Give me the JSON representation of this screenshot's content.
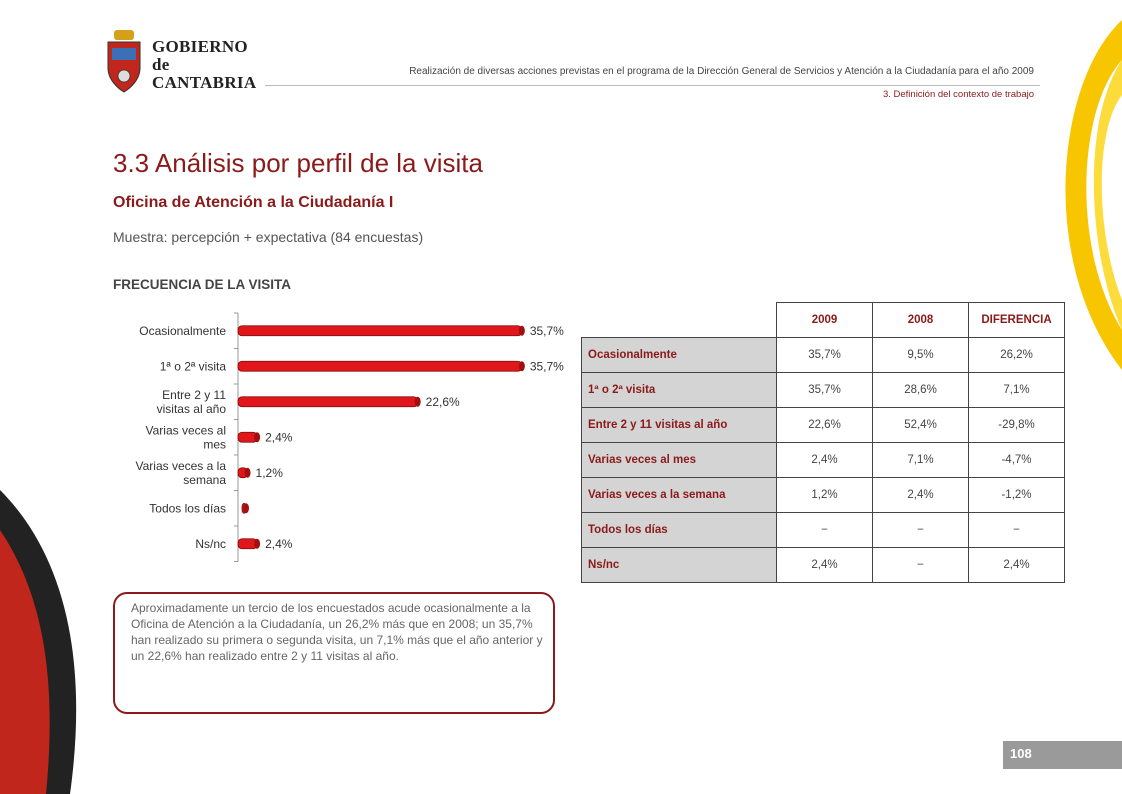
{
  "header": {
    "logo_line1": "GOBIERNO",
    "logo_line2": "de",
    "logo_line3": "CANTABRIA",
    "subtitle": "Realización de diversas acciones previstas en el programa de la Dirección General de Servicios y Atención a la Ciudadanía para el año 2009",
    "section": "3. Definición del contexto de trabajo"
  },
  "title": "3.3 Análisis por perfil de la visita",
  "heading": "Oficina de Atención a la Ciudadanía I",
  "sample": "Muestra: percepción + expectativa (84 encuestas)",
  "chart_title": "FRECUENCIA DE LA VISITA",
  "chart_data": {
    "type": "bar",
    "orientation": "horizontal",
    "categories": [
      [
        "Ocasionalmente"
      ],
      [
        "1ª o 2ª visita"
      ],
      [
        "Entre 2 y 11",
        "visitas al año"
      ],
      [
        "Varias veces al",
        "mes"
      ],
      [
        "Varias veces a la",
        "semana"
      ],
      [
        "Todos los días"
      ],
      [
        "Ns/nc"
      ]
    ],
    "values": [
      35.7,
      35.7,
      22.6,
      2.4,
      1.2,
      0,
      2.4
    ],
    "data_labels": [
      "35,7%",
      "35,7%",
      "22,6%",
      "2,4%",
      "1,2%",
      "",
      "2,4%"
    ],
    "xlim": [
      0,
      40
    ],
    "bar_color": "#e0161b",
    "grid": false
  },
  "table": {
    "headers": [
      "2009",
      "2008",
      "DIFERENCIA"
    ],
    "rows": [
      {
        "label": "Ocasionalmente",
        "v2009": "35,7%",
        "v2008": "9,5%",
        "diff": "26,2%"
      },
      {
        "label": "1ª o 2ª visita",
        "v2009": "35,7%",
        "v2008": "28,6%",
        "diff": "7,1%"
      },
      {
        "label": "Entre 2 y 11 visitas al año",
        "v2009": "22,6%",
        "v2008": "52,4%",
        "diff": "-29,8%"
      },
      {
        "label": "Varias veces al mes",
        "v2009": "2,4%",
        "v2008": "7,1%",
        "diff": "-4,7%"
      },
      {
        "label": "Varias veces a la semana",
        "v2009": "1,2%",
        "v2008": "2,4%",
        "diff": "-1,2%"
      },
      {
        "label": "Todos los días",
        "v2009": "−",
        "v2008": "−",
        "diff": "−"
      },
      {
        "label": "Ns/nc",
        "v2009": "2,4%",
        "v2008": "−",
        "diff": "2,4%"
      }
    ]
  },
  "summary": "Aproximadamente un tercio de los encuestados acude ocasionalmente a la Oficina de Atención a la Ciudadanía, un 26,2% más que en 2008; un 35,7% han realizado su primera o segunda visita, un 7,1% más que el año anterior y un 22,6% han realizado entre 2 y 11 visitas al año.",
  "page_number": "108",
  "colors": {
    "accent": "#8b1a1a",
    "bar": "#e0161b",
    "yellow": "#f7c600"
  }
}
